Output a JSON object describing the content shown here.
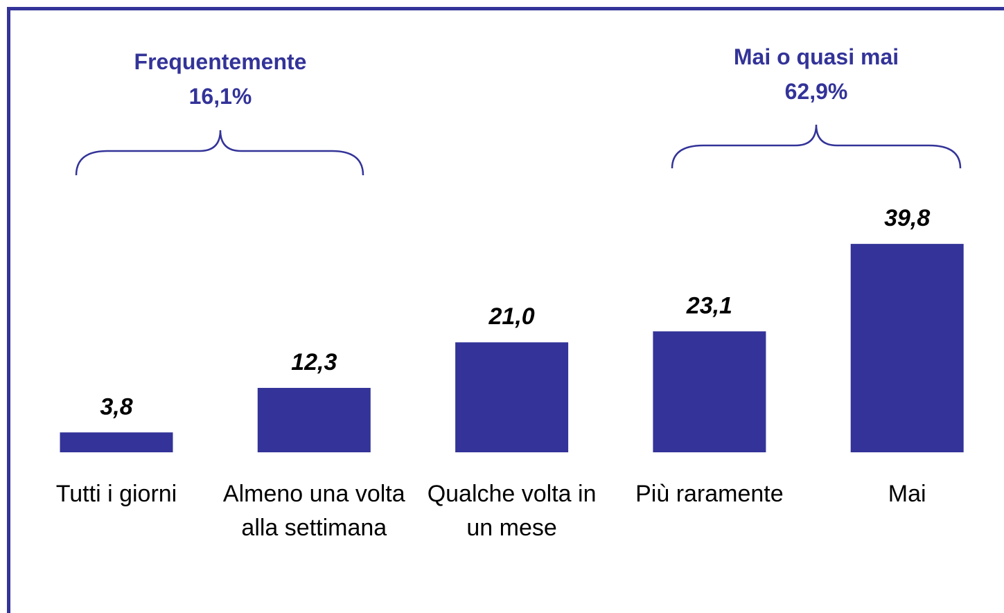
{
  "chart_data": {
    "type": "bar",
    "categories": [
      "Tutti i giorni",
      "Almeno una volta alla settimana",
      "Qualche volta in un mese",
      "Più raramente",
      "Mai"
    ],
    "values": [
      3.8,
      12.3,
      21.0,
      23.1,
      39.8
    ],
    "value_labels": [
      "3,8",
      "12,3",
      "21,0",
      "23,1",
      "39,8"
    ],
    "color": "#333399",
    "annotations": [
      {
        "text": "Frequentemente",
        "value": 16.1,
        "value_label": "16,1%"
      },
      {
        "text": "Mai o quasi mai",
        "value": 62.9,
        "value_label": "62,9%"
      }
    ]
  }
}
